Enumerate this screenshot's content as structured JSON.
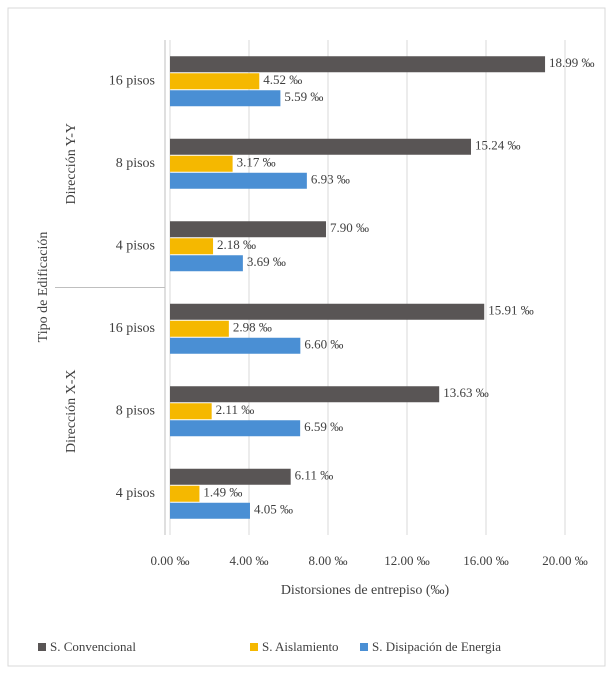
{
  "chart_data": {
    "type": "bar",
    "orientation": "horizontal",
    "groups": [
      {
        "name": "Dirección Y-Y",
        "categories": [
          "16 pisos",
          "8 pisos",
          "4 pisos"
        ]
      },
      {
        "name": "Dirección X-X",
        "categories": [
          "16 pisos",
          "8 pisos",
          "4 pisos"
        ]
      }
    ],
    "x_label": "Distorsiones de entrepiso (‰)",
    "y_label": "Tipo de Edificación",
    "xlim": [
      0,
      20
    ],
    "xticks": [
      {
        "value": 0,
        "label": "0.00 ‰"
      },
      {
        "value": 4,
        "label": "4.00 ‰"
      },
      {
        "value": 8,
        "label": "8.00 ‰"
      },
      {
        "value": 12,
        "label": "12.00 ‰"
      },
      {
        "value": 16,
        "label": "16.00 ‰"
      },
      {
        "value": 20,
        "label": "20.00 ‰"
      }
    ],
    "grid": true,
    "legend": "bottom",
    "series": [
      {
        "name": "S. Convencional",
        "color": "#595555",
        "values": [
          18.99,
          15.24,
          7.9,
          15.91,
          13.63,
          6.11
        ],
        "value_labels": [
          "18.99 ‰",
          "15.24 ‰",
          "7.90 ‰",
          "15.91 ‰",
          "13.63 ‰",
          "6.11 ‰"
        ]
      },
      {
        "name": "S. Aislamiento",
        "color": "#f5b800",
        "values": [
          4.52,
          3.17,
          2.18,
          2.98,
          2.11,
          1.49
        ],
        "value_labels": [
          "4.52 ‰",
          "3.17 ‰",
          "2.18 ‰",
          "2.98 ‰",
          "2.11 ‰",
          "1.49 ‰"
        ]
      },
      {
        "name": "S. Disipación de Energia",
        "color": "#4a8fd4",
        "values": [
          5.59,
          6.93,
          3.69,
          6.6,
          6.59,
          4.05
        ],
        "value_labels": [
          "5.59 ‰",
          "6.93 ‰",
          "3.69 ‰",
          "6.60 ‰",
          "6.59 ‰",
          "4.05 ‰"
        ]
      }
    ]
  }
}
